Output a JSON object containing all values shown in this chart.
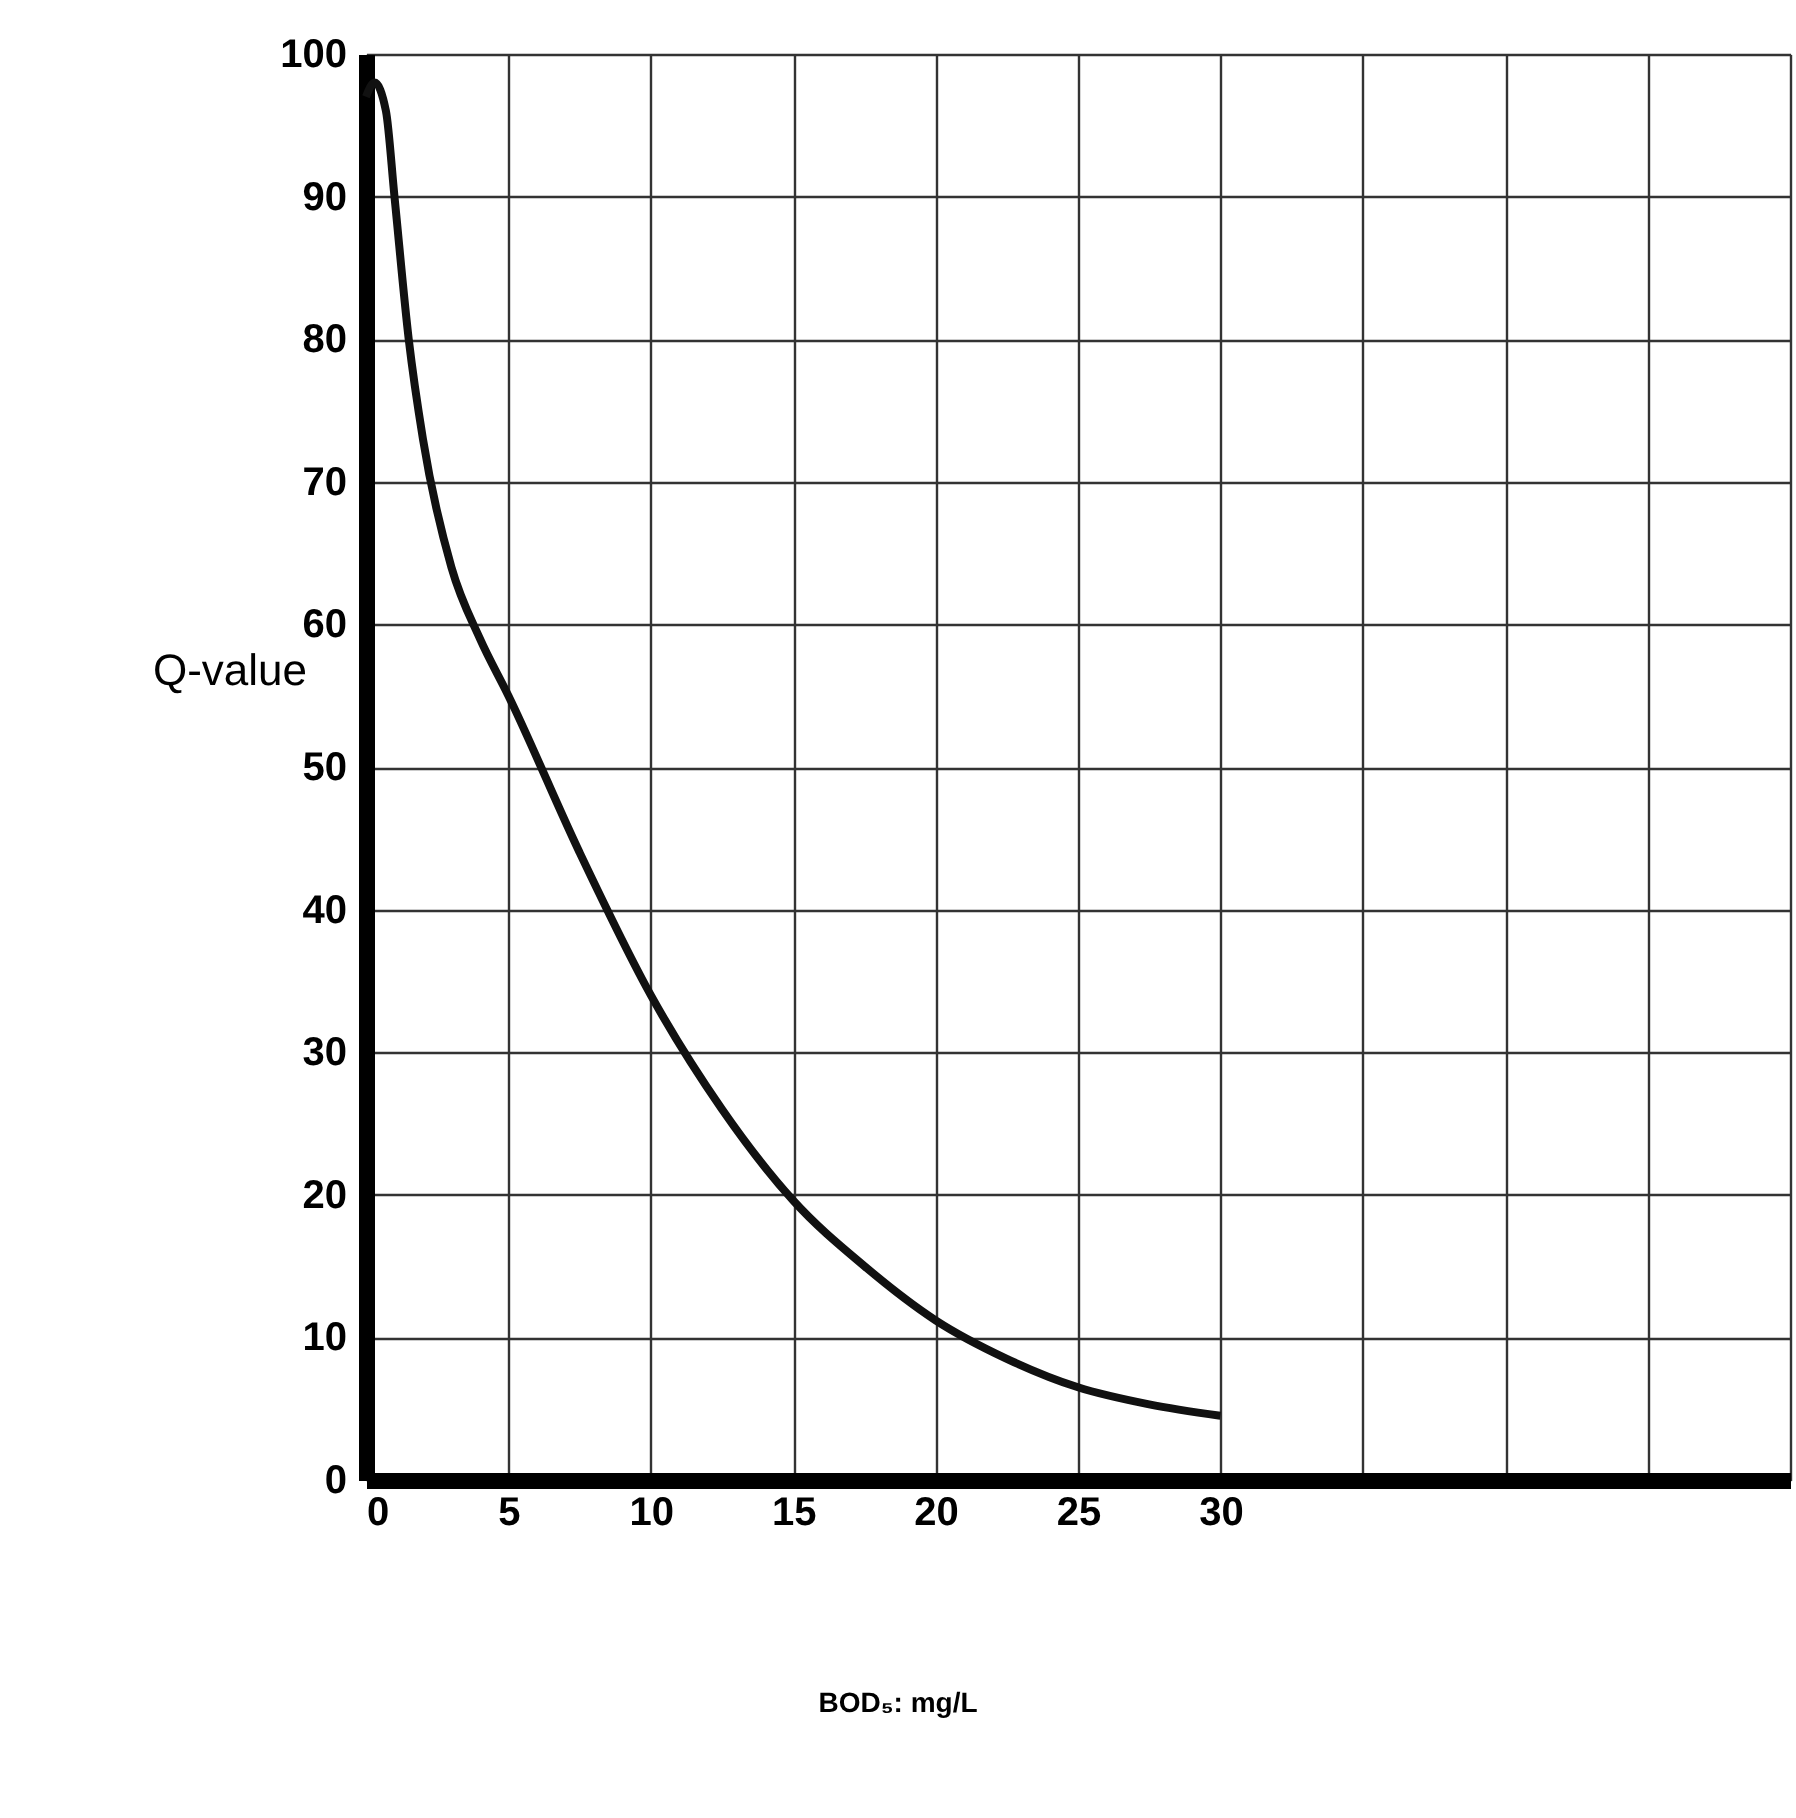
{
  "chart_data": {
    "type": "line",
    "annotations": [
      "BOD₅: mg/L"
    ],
    "ylabel": "Q-value",
    "x": [
      0,
      0.3,
      0.7,
      1,
      1.5,
      2,
      3,
      4,
      5,
      7.5,
      10,
      12.5,
      15,
      17.5,
      20,
      22.5,
      25,
      27.5,
      30
    ],
    "series": [
      {
        "color": "#111111",
        "values": [
          97,
          98,
          96,
          90,
          80,
          73,
          64,
          59,
          55,
          44,
          34,
          26,
          19.6,
          15,
          11.2,
          8.5,
          6.5,
          5.3,
          4.5
        ]
      }
    ],
    "xlim": [
      0,
      50
    ],
    "xticks": [
      0,
      5,
      10,
      15,
      20,
      25,
      30,
      {
        "value": 35,
        "label": null
      },
      {
        "value": 40,
        "label": null
      },
      {
        "value": 45,
        "label": null
      },
      {
        "value": 50,
        "label": null
      }
    ],
    "ylim": [
      0,
      100
    ],
    "yticks": [
      0,
      10,
      20,
      30,
      40,
      50,
      60,
      70,
      80,
      90,
      100
    ],
    "grid": true,
    "marker": "none",
    "line_style": "solid"
  }
}
